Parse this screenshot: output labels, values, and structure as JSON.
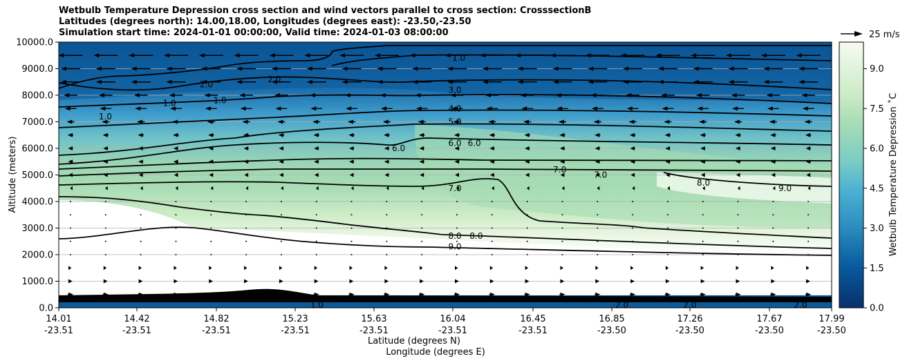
{
  "chart_data": {
    "type": "heatmap",
    "title_lines": [
      "Wetbulb Temperature Depression cross section and wind vectors parallel to cross section: CrosssectionB",
      "Latitudes (degrees north): 14.00,18.00, Longitudes (degrees east): -23.50,-23.50",
      "Simulation start time: 2024-01-01 00:00:00, Valid time: 2024-01-03 08:00:00"
    ],
    "ylabel": "Altitude (meters)",
    "xlabel_lat": "Latitude (degrees N)",
    "xlabel_lon": "Longitude (degrees E)",
    "ylim": [
      0,
      10000
    ],
    "y_ticks": [
      "0.0",
      "1000.0",
      "2000.0",
      "3000.0",
      "4000.0",
      "5000.0",
      "6000.0",
      "7000.0",
      "8000.0",
      "9000.0",
      "10000.0"
    ],
    "y_tick_values": [
      0,
      1000,
      2000,
      3000,
      4000,
      5000,
      6000,
      7000,
      8000,
      9000,
      10000
    ],
    "x_ticks_lat": [
      "14.01",
      "14.42",
      "14.82",
      "15.23",
      "15.63",
      "16.04",
      "16.45",
      "16.85",
      "17.26",
      "17.67",
      "17.99"
    ],
    "x_ticks_lon": [
      "-23.51",
      "-23.51",
      "-23.51",
      "-23.51",
      "-23.51",
      "-23.51",
      "-23.51",
      "-23.50",
      "-23.50",
      "-23.50",
      "-23.50"
    ],
    "xlim": [
      14.01,
      17.99
    ],
    "grid": "horizontal",
    "colorbar": {
      "label": "Wetbulb Temperature Depression ˚C",
      "range": [
        0,
        10
      ],
      "ticks": [
        "0.0",
        "1.5",
        "3.0",
        "4.5",
        "6.0",
        "7.5",
        "9.0"
      ],
      "tick_values": [
        0,
        1.5,
        3,
        4.5,
        6,
        7.5,
        9
      ],
      "colors": [
        "#08306b",
        "#08589e",
        "#2b8cbe",
        "#4eb3d3",
        "#7bccc4",
        "#a8ddb5",
        "#ccebc5",
        "#e0f3db",
        "#f7fcf0"
      ]
    },
    "contour_labels": [
      {
        "text": "1.0",
        "lat": 16.07,
        "alt": 9400
      },
      {
        "text": "2.0",
        "lat": 14.77,
        "alt": 8400
      },
      {
        "text": "2.0",
        "lat": 15.12,
        "alt": 8600
      },
      {
        "text": "1.0",
        "lat": 14.84,
        "alt": 7800
      },
      {
        "text": "1.0",
        "lat": 14.58,
        "alt": 7700
      },
      {
        "text": "1.0",
        "lat": 14.25,
        "alt": 7200
      },
      {
        "text": "3.0",
        "lat": 16.05,
        "alt": 8200
      },
      {
        "text": "4.0",
        "lat": 16.05,
        "alt": 7500
      },
      {
        "text": "5.0",
        "lat": 16.05,
        "alt": 7000
      },
      {
        "text": "6.0",
        "lat": 16.05,
        "alt": 6200
      },
      {
        "text": "6.0",
        "lat": 16.15,
        "alt": 6200
      },
      {
        "text": "6.0",
        "lat": 15.76,
        "alt": 6000
      },
      {
        "text": "7.0",
        "lat": 16.05,
        "alt": 4500
      },
      {
        "text": "7.0",
        "lat": 16.59,
        "alt": 5200
      },
      {
        "text": "7.0",
        "lat": 16.8,
        "alt": 5000
      },
      {
        "text": "8.0",
        "lat": 17.33,
        "alt": 4700
      },
      {
        "text": "9.0",
        "lat": 17.75,
        "alt": 4500
      },
      {
        "text": "8.0",
        "lat": 16.05,
        "alt": 2700
      },
      {
        "text": "8.0",
        "lat": 16.16,
        "alt": 2700
      },
      {
        "text": "9.0",
        "lat": 16.05,
        "alt": 2300
      },
      {
        "text": "1.0",
        "lat": 15.34,
        "alt": 100
      },
      {
        "text": "2.0",
        "lat": 16.91,
        "alt": 100
      },
      {
        "text": "2.0",
        "lat": 17.26,
        "alt": 100
      },
      {
        "text": "2.0",
        "lat": 17.83,
        "alt": 100
      }
    ],
    "wind_reference": {
      "label": "25 m/s",
      "speed": 25
    },
    "wind_levels": [
      {
        "alt": 9500,
        "speed": -25
      },
      {
        "alt": 9000,
        "speed": -20
      },
      {
        "alt": 8500,
        "speed": -20
      },
      {
        "alt": 8000,
        "speed": -14
      },
      {
        "alt": 7500,
        "speed": -12
      },
      {
        "alt": 7000,
        "speed": -8
      },
      {
        "alt": 6500,
        "speed": -6
      },
      {
        "alt": 6000,
        "speed": -5
      },
      {
        "alt": 5500,
        "speed": -5
      },
      {
        "alt": 5000,
        "speed": -4
      },
      {
        "alt": 4500,
        "speed": -1
      },
      {
        "alt": 4000,
        "speed": 0
      },
      {
        "alt": 3500,
        "speed": 0
      },
      {
        "alt": 3000,
        "speed": 0
      },
      {
        "alt": 2500,
        "speed": 0
      },
      {
        "alt": 2000,
        "speed": 0
      },
      {
        "alt": 1500,
        "speed": 2
      },
      {
        "alt": 1000,
        "speed": 4
      },
      {
        "alt": 500,
        "speed": 6
      }
    ]
  }
}
